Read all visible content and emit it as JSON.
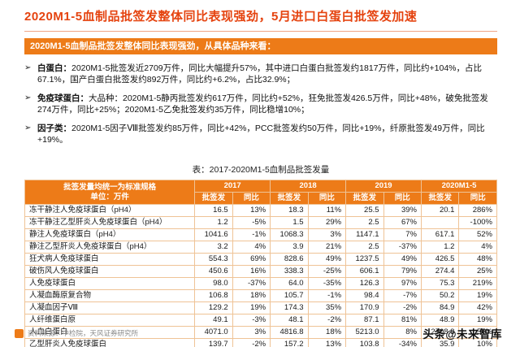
{
  "page": {
    "title": "2020M1-5血制品批签发整体同比表现强劲，5月进口白蛋白批签发加速",
    "banner": "2020M1-5血制品批签发整体同比表现强劲，从具体品种来看：",
    "bullets": [
      {
        "marker": "➢",
        "label": "白蛋白：",
        "text": "2020M1-5批签发近2709万件，同比大幅提升57%，其中进口白蛋白批签发约1817万件，同比约+104%，占比67.1%，国产白蛋白批签发约892万件，同比约+6.2%，占比32.9%；"
      },
      {
        "marker": "➢",
        "label": "免疫球蛋白：",
        "text": "大品种：2020M1-5静丙批签发约617万件，同比约+52%，狂免批签发426.5万件，同比+48%，破免批签发274万件，同比+25%；2020M1-5乙免批签发约35万件，同比稳增10%；"
      },
      {
        "marker": "➢",
        "label": "因子类：",
        "text": "2020M1-5因子Ⅷ批签发约85万件，同比+42%，PCC批签发约50万件，同比+19%，纤原批签发49万件，同比+19%。"
      }
    ],
    "table_caption": "表：2017-2020M1-5血制品批签发量",
    "footer": {
      "source": "资料来源：中检院，天风证券研究所",
      "watermark": "头条@未来智库"
    }
  },
  "chart_data": {
    "type": "table",
    "title": "表：2017-2020M1-5血制品批签发量",
    "header": {
      "left_line1": "批签发量均统一为标准规格",
      "left_line2": "单位：万件",
      "years": [
        "2017",
        "2018",
        "2019",
        "2020M1-5"
      ],
      "subcols": [
        "批签发",
        "同比"
      ]
    },
    "rows": [
      {
        "name": "冻干静注人免疫球蛋白（pH4）",
        "values": [
          "16.5",
          "13%",
          "18.3",
          "11%",
          "25.5",
          "39%",
          "20.1",
          "286%"
        ]
      },
      {
        "name": "冻干静注乙型肝炎人免疫球蛋白（pH4）",
        "values": [
          "1.2",
          "-5%",
          "1.5",
          "29%",
          "2.5",
          "67%",
          "",
          "-100%"
        ]
      },
      {
        "name": "静注人免疫球蛋白（pH4）",
        "values": [
          "1041.6",
          "-1%",
          "1068.3",
          "3%",
          "1147.1",
          "7%",
          "617.1",
          "52%"
        ]
      },
      {
        "name": "静注乙型肝炎人免疫球蛋白（pH4）",
        "values": [
          "3.2",
          "4%",
          "3.9",
          "21%",
          "2.5",
          "-37%",
          "1.2",
          "4%"
        ]
      },
      {
        "name": "狂犬病人免疫球蛋白",
        "values": [
          "554.3",
          "69%",
          "828.6",
          "49%",
          "1237.5",
          "49%",
          "426.5",
          "48%"
        ]
      },
      {
        "name": "破伤风人免疫球蛋白",
        "values": [
          "450.6",
          "16%",
          "338.3",
          "-25%",
          "606.1",
          "79%",
          "274.4",
          "25%"
        ]
      },
      {
        "name": "人免疫球蛋白",
        "values": [
          "98.0",
          "-37%",
          "64.0",
          "-35%",
          "126.3",
          "97%",
          "75.3",
          "219%"
        ]
      },
      {
        "name": "人凝血酶原复合物",
        "values": [
          "106.8",
          "18%",
          "105.7",
          "-1%",
          "98.4",
          "-7%",
          "50.2",
          "19%"
        ]
      },
      {
        "name": "人凝血因子Ⅷ",
        "values": [
          "129.2",
          "19%",
          "174.3",
          "35%",
          "170.9",
          "-2%",
          "84.9",
          "42%"
        ]
      },
      {
        "name": "人纤维蛋白原",
        "values": [
          "49.1",
          "-3%",
          "48.1",
          "-2%",
          "87.1",
          "81%",
          "48.9",
          "19%"
        ]
      },
      {
        "name": "人血白蛋白",
        "values": [
          "4071.0",
          "3%",
          "4816.8",
          "18%",
          "5213.0",
          "8%",
          "2708.8",
          "57%"
        ]
      },
      {
        "name": "乙型肝炎人免疫球蛋白",
        "values": [
          "139.7",
          "-2%",
          "157.2",
          "13%",
          "103.8",
          "-34%",
          "35.9",
          "10%"
        ]
      }
    ]
  },
  "colors": {
    "title_red": "#E5430F",
    "accent_orange": "#ED7B18",
    "table_border": "#EFC396",
    "footer_gray": "#8A8A8A"
  }
}
